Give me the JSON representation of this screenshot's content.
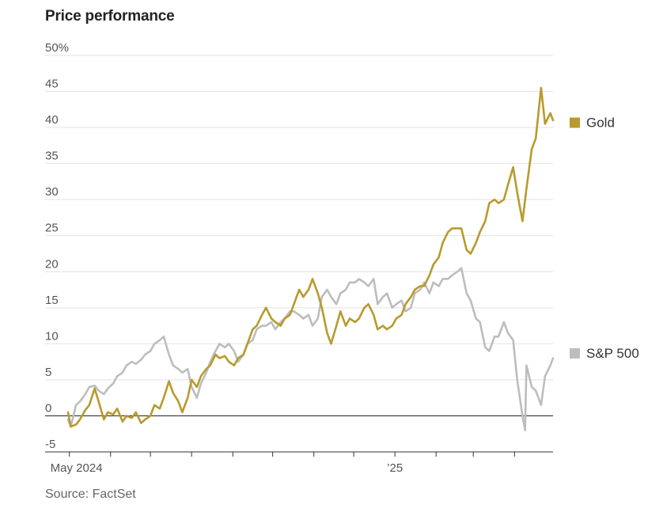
{
  "header": {
    "title": "Price performance"
  },
  "footer": {
    "source": "Source: FactSet"
  },
  "chart_data": {
    "type": "line",
    "title": "Price performance",
    "xlabel": "",
    "ylabel": "",
    "ylim": [
      -5,
      50
    ],
    "y_ticks": [
      -5,
      0,
      5,
      10,
      15,
      20,
      25,
      30,
      35,
      40,
      45,
      50
    ],
    "y_tick_labels": [
      "-5",
      "0",
      "5",
      "10",
      "15",
      "20",
      "25",
      "30",
      "35",
      "40",
      "45",
      "50%"
    ],
    "x_range": [
      "2024-04-30",
      "2025-04-30"
    ],
    "x_tick_dates": [
      "2024-05-01",
      "2024-06-01",
      "2024-07-01",
      "2024-08-01",
      "2024-09-01",
      "2024-10-01",
      "2024-11-01",
      "2024-12-01",
      "2025-01-01",
      "2025-02-01",
      "2025-03-01",
      "2025-04-01"
    ],
    "x_tick_labels": [
      {
        "date": "2024-05-01",
        "label": "May 2024"
      },
      {
        "date": "2025-01-01",
        "label": "’25"
      }
    ],
    "grid": true,
    "legend": "right, inline at series end",
    "series": [
      {
        "name": "Gold",
        "color": "#b89a2e",
        "points": [
          [
            "2024-04-30",
            0.5
          ],
          [
            "2024-05-02",
            -1.5
          ],
          [
            "2024-05-06",
            -1.2
          ],
          [
            "2024-05-09",
            -0.5
          ],
          [
            "2024-05-13",
            0.8
          ],
          [
            "2024-05-16",
            1.5
          ],
          [
            "2024-05-20",
            3.8
          ],
          [
            "2024-05-23",
            2.0
          ],
          [
            "2024-05-27",
            -0.5
          ],
          [
            "2024-05-30",
            0.5
          ],
          [
            "2024-06-03",
            0.2
          ],
          [
            "2024-06-06",
            1.0
          ],
          [
            "2024-06-10",
            -0.8
          ],
          [
            "2024-06-13",
            0.0
          ],
          [
            "2024-06-17",
            -0.3
          ],
          [
            "2024-06-20",
            0.5
          ],
          [
            "2024-06-24",
            -1.0
          ],
          [
            "2024-06-27",
            -0.5
          ],
          [
            "2024-07-01",
            0.0
          ],
          [
            "2024-07-04",
            1.5
          ],
          [
            "2024-07-08",
            1.0
          ],
          [
            "2024-07-11",
            2.5
          ],
          [
            "2024-07-15",
            4.8
          ],
          [
            "2024-07-18",
            3.2
          ],
          [
            "2024-07-22",
            2.0
          ],
          [
            "2024-07-25",
            0.5
          ],
          [
            "2024-07-29",
            2.5
          ],
          [
            "2024-08-01",
            5.0
          ],
          [
            "2024-08-05",
            4.0
          ],
          [
            "2024-08-08",
            5.5
          ],
          [
            "2024-08-12",
            6.5
          ],
          [
            "2024-08-15",
            7.0
          ],
          [
            "2024-08-19",
            8.5
          ],
          [
            "2024-08-22",
            8.0
          ],
          [
            "2024-08-26",
            8.3
          ],
          [
            "2024-08-29",
            7.5
          ],
          [
            "2024-09-02",
            7.0
          ],
          [
            "2024-09-05",
            8.0
          ],
          [
            "2024-09-09",
            8.5
          ],
          [
            "2024-09-12",
            10.0
          ],
          [
            "2024-09-16",
            12.0
          ],
          [
            "2024-09-19",
            12.5
          ],
          [
            "2024-09-23",
            14.0
          ],
          [
            "2024-09-26",
            15.0
          ],
          [
            "2024-09-30",
            13.5
          ],
          [
            "2024-10-03",
            13.0
          ],
          [
            "2024-10-07",
            12.5
          ],
          [
            "2024-10-10",
            13.5
          ],
          [
            "2024-10-14",
            14.0
          ],
          [
            "2024-10-17",
            15.5
          ],
          [
            "2024-10-21",
            17.5
          ],
          [
            "2024-10-24",
            16.5
          ],
          [
            "2024-10-28",
            17.5
          ],
          [
            "2024-10-31",
            19.0
          ],
          [
            "2024-11-04",
            17.0
          ],
          [
            "2024-11-07",
            15.0
          ],
          [
            "2024-11-11",
            11.5
          ],
          [
            "2024-11-14",
            10.0
          ],
          [
            "2024-11-18",
            12.5
          ],
          [
            "2024-11-21",
            14.5
          ],
          [
            "2024-11-25",
            12.5
          ],
          [
            "2024-11-28",
            13.5
          ],
          [
            "2024-12-02",
            13.0
          ],
          [
            "2024-12-05",
            13.5
          ],
          [
            "2024-12-09",
            15.0
          ],
          [
            "2024-12-12",
            15.5
          ],
          [
            "2024-12-16",
            14.0
          ],
          [
            "2024-12-19",
            12.0
          ],
          [
            "2024-12-23",
            12.5
          ],
          [
            "2024-12-26",
            12.0
          ],
          [
            "2024-12-30",
            12.5
          ],
          [
            "2025-01-02",
            13.5
          ],
          [
            "2025-01-06",
            14.0
          ],
          [
            "2025-01-09",
            15.5
          ],
          [
            "2025-01-13",
            16.5
          ],
          [
            "2025-01-16",
            17.5
          ],
          [
            "2025-01-20",
            18.0
          ],
          [
            "2025-01-23",
            18.0
          ],
          [
            "2025-01-27",
            19.5
          ],
          [
            "2025-01-30",
            21.0
          ],
          [
            "2025-02-03",
            22.0
          ],
          [
            "2025-02-06",
            24.0
          ],
          [
            "2025-02-10",
            25.5
          ],
          [
            "2025-02-13",
            26.0
          ],
          [
            "2025-02-17",
            26.0
          ],
          [
            "2025-02-20",
            26.0
          ],
          [
            "2025-02-24",
            23.0
          ],
          [
            "2025-02-27",
            22.5
          ],
          [
            "2025-03-03",
            24.0
          ],
          [
            "2025-03-06",
            25.5
          ],
          [
            "2025-03-10",
            27.0
          ],
          [
            "2025-03-13",
            29.5
          ],
          [
            "2025-03-17",
            30.0
          ],
          [
            "2025-03-20",
            29.5
          ],
          [
            "2025-03-24",
            30.0
          ],
          [
            "2025-03-27",
            32.0
          ],
          [
            "2025-03-31",
            34.5
          ],
          [
            "2025-04-03",
            31.0
          ],
          [
            "2025-04-07",
            27.0
          ],
          [
            "2025-04-10",
            31.5
          ],
          [
            "2025-04-14",
            37.0
          ],
          [
            "2025-04-17",
            38.5
          ],
          [
            "2025-04-21",
            45.5
          ],
          [
            "2025-04-24",
            40.5
          ],
          [
            "2025-04-28",
            42.0
          ],
          [
            "2025-04-30",
            41.0
          ]
        ]
      },
      {
        "name": "S&P 500",
        "color": "#bdbdbd",
        "points": [
          [
            "2024-04-30",
            -0.5
          ],
          [
            "2024-05-02",
            -1.5
          ],
          [
            "2024-05-06",
            1.5
          ],
          [
            "2024-05-09",
            2.0
          ],
          [
            "2024-05-13",
            3.0
          ],
          [
            "2024-05-16",
            4.0
          ],
          [
            "2024-05-20",
            4.2
          ],
          [
            "2024-05-23",
            3.5
          ],
          [
            "2024-05-27",
            3.0
          ],
          [
            "2024-05-30",
            3.8
          ],
          [
            "2024-06-03",
            4.5
          ],
          [
            "2024-06-06",
            5.5
          ],
          [
            "2024-06-10",
            6.0
          ],
          [
            "2024-06-13",
            7.0
          ],
          [
            "2024-06-17",
            7.5
          ],
          [
            "2024-06-20",
            7.2
          ],
          [
            "2024-06-24",
            7.8
          ],
          [
            "2024-06-27",
            8.5
          ],
          [
            "2024-07-01",
            9.0
          ],
          [
            "2024-07-04",
            10.0
          ],
          [
            "2024-07-08",
            10.5
          ],
          [
            "2024-07-11",
            11.0
          ],
          [
            "2024-07-15",
            8.5
          ],
          [
            "2024-07-18",
            7.0
          ],
          [
            "2024-07-22",
            6.5
          ],
          [
            "2024-07-25",
            6.0
          ],
          [
            "2024-07-29",
            6.5
          ],
          [
            "2024-08-01",
            4.0
          ],
          [
            "2024-08-05",
            2.5
          ],
          [
            "2024-08-08",
            4.5
          ],
          [
            "2024-08-12",
            6.0
          ],
          [
            "2024-08-15",
            7.5
          ],
          [
            "2024-08-19",
            9.0
          ],
          [
            "2024-08-22",
            10.0
          ],
          [
            "2024-08-26",
            9.5
          ],
          [
            "2024-08-29",
            10.0
          ],
          [
            "2024-09-02",
            9.0
          ],
          [
            "2024-09-05",
            7.5
          ],
          [
            "2024-09-09",
            8.5
          ],
          [
            "2024-09-12",
            10.0
          ],
          [
            "2024-09-16",
            10.5
          ],
          [
            "2024-09-19",
            12.0
          ],
          [
            "2024-09-23",
            12.5
          ],
          [
            "2024-09-26",
            12.5
          ],
          [
            "2024-09-30",
            13.0
          ],
          [
            "2024-10-03",
            12.0
          ],
          [
            "2024-10-07",
            13.0
          ],
          [
            "2024-10-10",
            13.5
          ],
          [
            "2024-10-14",
            14.5
          ],
          [
            "2024-10-17",
            14.5
          ],
          [
            "2024-10-21",
            14.0
          ],
          [
            "2024-10-24",
            13.5
          ],
          [
            "2024-10-28",
            14.0
          ],
          [
            "2024-10-31",
            12.5
          ],
          [
            "2024-11-04",
            13.5
          ],
          [
            "2024-11-07",
            16.5
          ],
          [
            "2024-11-11",
            17.5
          ],
          [
            "2024-11-14",
            16.5
          ],
          [
            "2024-11-18",
            15.5
          ],
          [
            "2024-11-21",
            17.0
          ],
          [
            "2024-11-25",
            17.5
          ],
          [
            "2024-11-28",
            18.5
          ],
          [
            "2024-12-02",
            18.5
          ],
          [
            "2024-12-05",
            19.0
          ],
          [
            "2024-12-09",
            18.5
          ],
          [
            "2024-12-12",
            18.0
          ],
          [
            "2024-12-16",
            19.0
          ],
          [
            "2024-12-19",
            15.5
          ],
          [
            "2024-12-23",
            16.5
          ],
          [
            "2024-12-26",
            17.0
          ],
          [
            "2024-12-30",
            15.0
          ],
          [
            "2025-01-02",
            15.5
          ],
          [
            "2025-01-06",
            16.0
          ],
          [
            "2025-01-09",
            14.5
          ],
          [
            "2025-01-13",
            15.0
          ],
          [
            "2025-01-16",
            17.0
          ],
          [
            "2025-01-20",
            17.5
          ],
          [
            "2025-01-23",
            18.5
          ],
          [
            "2025-01-27",
            17.0
          ],
          [
            "2025-01-30",
            18.5
          ],
          [
            "2025-02-03",
            18.0
          ],
          [
            "2025-02-06",
            19.0
          ],
          [
            "2025-02-10",
            19.0
          ],
          [
            "2025-02-13",
            19.5
          ],
          [
            "2025-02-17",
            20.0
          ],
          [
            "2025-02-20",
            20.5
          ],
          [
            "2025-02-24",
            17.0
          ],
          [
            "2025-02-27",
            16.0
          ],
          [
            "2025-03-03",
            13.5
          ],
          [
            "2025-03-06",
            13.0
          ],
          [
            "2025-03-10",
            9.5
          ],
          [
            "2025-03-13",
            9.0
          ],
          [
            "2025-03-17",
            11.0
          ],
          [
            "2025-03-20",
            11.0
          ],
          [
            "2025-03-24",
            13.0
          ],
          [
            "2025-03-27",
            11.5
          ],
          [
            "2025-03-31",
            10.5
          ],
          [
            "2025-04-03",
            5.0
          ],
          [
            "2025-04-07",
            0.0
          ],
          [
            "2025-04-09",
            -2.0
          ],
          [
            "2025-04-10",
            7.0
          ],
          [
            "2025-04-14",
            4.0
          ],
          [
            "2025-04-17",
            3.5
          ],
          [
            "2025-04-21",
            1.5
          ],
          [
            "2025-04-24",
            5.5
          ],
          [
            "2025-04-28",
            7.0
          ],
          [
            "2025-04-30",
            8.0
          ]
        ]
      }
    ]
  }
}
